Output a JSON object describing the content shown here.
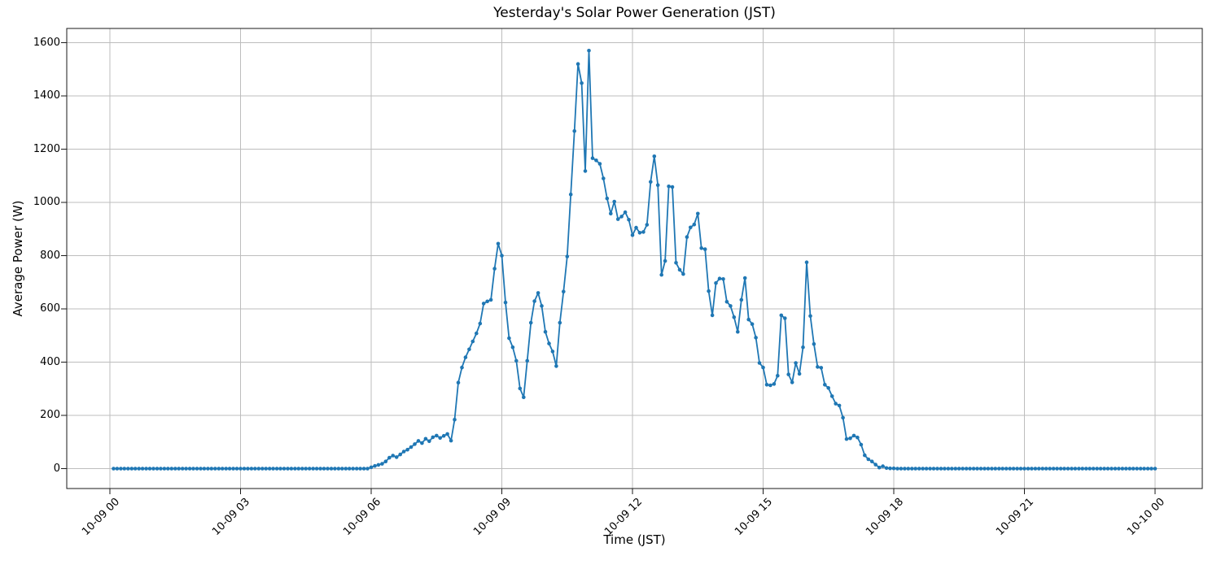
{
  "figure": {
    "background": "#ffffff",
    "title": "Yesterday's Solar Power Generation (JST)"
  },
  "chart_data": {
    "type": "line",
    "title": "Yesterday's Solar Power Generation (JST)",
    "xlabel": "Time (JST)",
    "ylabel": "Average Power (W)",
    "grid": true,
    "legend": "none",
    "line_color": "#1f77b4",
    "grid_color": "#bdbdbd",
    "marker": "circle",
    "x_tick_labels": [
      "10-09 00",
      "10-09 03",
      "10-09 06",
      "10-09 09",
      "10-09 12",
      "10-09 15",
      "10-09 18",
      "10-09 21",
      "10-10 00"
    ],
    "x_tick_hours": [
      0,
      3,
      6,
      9,
      12,
      15,
      18,
      21,
      24
    ],
    "y_ticks": [
      0,
      200,
      400,
      600,
      800,
      1000,
      1200,
      1400,
      1600
    ],
    "y_tick_labels": [
      "0",
      "200",
      "400",
      "600",
      "800",
      "1000",
      "1200",
      "1400",
      "1600"
    ],
    "ylim": [
      0,
      1600
    ],
    "series": [
      {
        "name": "Average Power (W)",
        "start_time": "00:05",
        "end_time": "24:00",
        "interval_minutes": 5,
        "values": [
          0,
          0,
          0,
          0,
          0,
          0,
          0,
          0,
          0,
          0,
          0,
          0,
          0,
          0,
          0,
          0,
          0,
          0,
          0,
          0,
          0,
          0,
          0,
          0,
          0,
          0,
          0,
          0,
          0,
          0,
          0,
          0,
          0,
          0,
          0,
          0,
          0,
          0,
          0,
          0,
          0,
          0,
          0,
          0,
          0,
          0,
          0,
          0,
          0,
          0,
          0,
          0,
          0,
          0,
          0,
          0,
          0,
          0,
          0,
          0,
          0,
          0,
          0,
          0,
          0,
          0,
          0,
          0,
          0,
          0,
          0,
          5,
          10,
          14,
          18,
          27,
          41,
          49,
          43,
          53,
          64,
          71,
          81,
          92,
          104,
          96,
          112,
          103,
          118,
          124,
          115,
          123,
          130,
          105,
          184,
          323,
          380,
          418,
          448,
          478,
          508,
          545,
          620,
          628,
          634,
          751,
          845,
          800,
          624,
          490,
          456,
          405,
          301,
          268,
          405,
          548,
          629,
          660,
          611,
          514,
          470,
          440,
          385,
          548,
          665,
          797,
          1030,
          1268,
          1520,
          1448,
          1118,
          1570,
          1166,
          1158,
          1145,
          1090,
          1015,
          958,
          1003,
          937,
          947,
          963,
          935,
          877,
          905,
          886,
          889,
          916,
          1077,
          1173,
          1065,
          728,
          780,
          1060,
          1058,
          773,
          747,
          731,
          870,
          906,
          917,
          958,
          828,
          824,
          667,
          576,
          697,
          714,
          712,
          627,
          611,
          569,
          514,
          634,
          716,
          560,
          543,
          492,
          397,
          380,
          315,
          313,
          318,
          349,
          576,
          565,
          354,
          324,
          397,
          356,
          456,
          775,
          573,
          468,
          382,
          379,
          315,
          303,
          272,
          244,
          237,
          191,
          111,
          114,
          124,
          117,
          90,
          50,
          35,
          27,
          15,
          4,
          9,
          2,
          1,
          1,
          0,
          0,
          0,
          0,
          0,
          0,
          0,
          0,
          0,
          0,
          0,
          0,
          0,
          0,
          0,
          0,
          0,
          0,
          0,
          0,
          0,
          0,
          0,
          0,
          0,
          0,
          0,
          0,
          0,
          0,
          0,
          0,
          0,
          0,
          0,
          0,
          0,
          0,
          0,
          0,
          0,
          0,
          0,
          0,
          0,
          0,
          0,
          0,
          0,
          0,
          0,
          0,
          0,
          0,
          0,
          0,
          0,
          0,
          0,
          0,
          0,
          0,
          0,
          0,
          0,
          0,
          0,
          0,
          0,
          0,
          0,
          0
        ]
      }
    ]
  }
}
